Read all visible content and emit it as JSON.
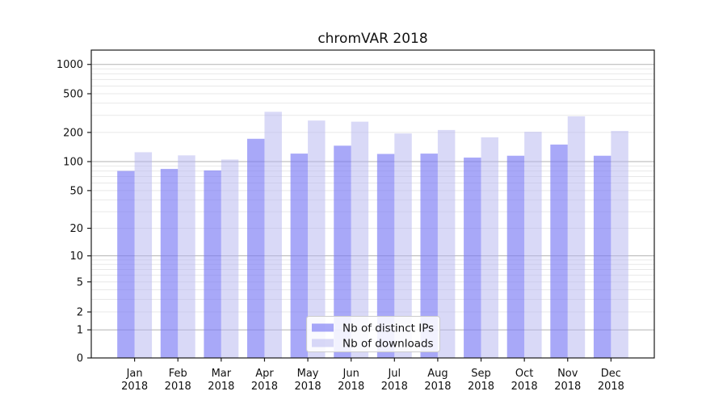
{
  "title": "chromVAR 2018",
  "chart_data": {
    "type": "bar",
    "title": "chromVAR 2018",
    "xlabel": "",
    "ylabel": "",
    "year": "2018",
    "months": [
      "Jan",
      "Feb",
      "Mar",
      "Apr",
      "May",
      "Jun",
      "Jul",
      "Aug",
      "Sep",
      "Oct",
      "Nov",
      "Dec"
    ],
    "categories": [
      "Jan 2018",
      "Feb 2018",
      "Mar 2018",
      "Apr 2018",
      "May 2018",
      "Jun 2018",
      "Jul 2018",
      "Aug 2018",
      "Sep 2018",
      "Oct 2018",
      "Nov 2018",
      "Dec 2018"
    ],
    "series": [
      {
        "name": "Nb of distinct IPs",
        "color": "rgba(122,122,245,0.65)",
        "values": [
          80,
          84,
          81,
          172,
          121,
          146,
          120,
          121,
          110,
          115,
          150,
          115
        ]
      },
      {
        "name": "Nb of downloads",
        "color": "rgba(180,180,240,0.5)",
        "values": [
          125,
          116,
          105,
          326,
          265,
          258,
          195,
          212,
          178,
          203,
          293,
          207
        ]
      }
    ],
    "yscale": "log1p",
    "yticks": [
      0,
      1,
      2,
      5,
      10,
      20,
      50,
      100,
      200,
      500,
      1000
    ],
    "ylim": [
      0,
      1400
    ],
    "grid": "on",
    "legend_position": "lower center",
    "colors": {
      "major_gridline": "#b3b3b3",
      "minor_gridline": "#e8e8e8",
      "spine": "#1a1a1a",
      "legend_border": "#cccccc",
      "legend_background": "rgba(255,255,255,0.85)"
    }
  }
}
